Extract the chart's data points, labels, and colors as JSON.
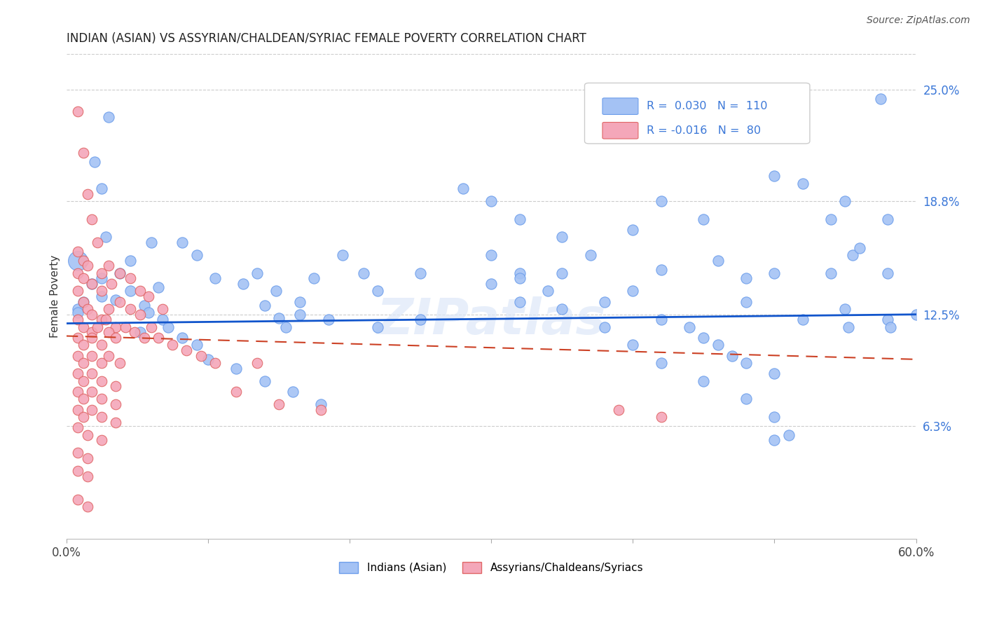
{
  "title": "INDIAN (ASIAN) VS ASSYRIAN/CHALDEAN/SYRIAC FEMALE POVERTY CORRELATION CHART",
  "source": "Source: ZipAtlas.com",
  "ylabel": "Female Poverty",
  "yticks": [
    0.063,
    0.125,
    0.188,
    0.25
  ],
  "ytick_labels": [
    "6.3%",
    "12.5%",
    "18.8%",
    "25.0%"
  ],
  "xlim": [
    0.0,
    0.6
  ],
  "ylim": [
    0.0,
    0.27
  ],
  "blue_R": "0.030",
  "blue_N": "110",
  "pink_R": "-0.016",
  "pink_N": "80",
  "blue_color": "#a4c2f4",
  "pink_color": "#f4a7b9",
  "blue_edge_color": "#6d9eeb",
  "pink_edge_color": "#e06666",
  "blue_line_color": "#1155cc",
  "pink_line_color": "#cc4125",
  "legend1_label": "Indians (Asian)",
  "legend2_label": "Assyrians/Chaldeans/Syriacs",
  "watermark": "ZIPatlas",
  "blue_trend": [
    0.0,
    0.6,
    0.12,
    0.125
  ],
  "pink_trend": [
    0.0,
    0.6,
    0.113,
    0.1
  ],
  "blue_points": [
    [
      0.03,
      0.235
    ],
    [
      0.02,
      0.21
    ],
    [
      0.025,
      0.195
    ],
    [
      0.028,
      0.168
    ],
    [
      0.06,
      0.165
    ],
    [
      0.045,
      0.155
    ],
    [
      0.038,
      0.148
    ],
    [
      0.065,
      0.14
    ],
    [
      0.045,
      0.138
    ],
    [
      0.025,
      0.135
    ],
    [
      0.035,
      0.133
    ],
    [
      0.055,
      0.13
    ],
    [
      0.008,
      0.128
    ],
    [
      0.058,
      0.126
    ],
    [
      0.068,
      0.122
    ],
    [
      0.072,
      0.118
    ],
    [
      0.052,
      0.115
    ],
    [
      0.082,
      0.112
    ],
    [
      0.092,
      0.108
    ],
    [
      0.025,
      0.145
    ],
    [
      0.018,
      0.142
    ],
    [
      0.012,
      0.132
    ],
    [
      0.008,
      0.126
    ],
    [
      0.14,
      0.13
    ],
    [
      0.15,
      0.123
    ],
    [
      0.155,
      0.118
    ],
    [
      0.165,
      0.125
    ],
    [
      0.185,
      0.122
    ],
    [
      0.28,
      0.195
    ],
    [
      0.3,
      0.188
    ],
    [
      0.32,
      0.178
    ],
    [
      0.35,
      0.168
    ],
    [
      0.37,
      0.158
    ],
    [
      0.4,
      0.172
    ],
    [
      0.42,
      0.188
    ],
    [
      0.45,
      0.178
    ],
    [
      0.5,
      0.202
    ],
    [
      0.52,
      0.198
    ],
    [
      0.55,
      0.188
    ],
    [
      0.555,
      0.158
    ],
    [
      0.58,
      0.178
    ],
    [
      0.575,
      0.245
    ],
    [
      0.35,
      0.128
    ],
    [
      0.38,
      0.132
    ],
    [
      0.4,
      0.138
    ],
    [
      0.42,
      0.122
    ],
    [
      0.44,
      0.118
    ],
    [
      0.45,
      0.112
    ],
    [
      0.46,
      0.108
    ],
    [
      0.47,
      0.102
    ],
    [
      0.48,
      0.098
    ],
    [
      0.5,
      0.092
    ],
    [
      0.3,
      0.158
    ],
    [
      0.32,
      0.148
    ],
    [
      0.32,
      0.132
    ],
    [
      0.35,
      0.148
    ],
    [
      0.38,
      0.118
    ],
    [
      0.4,
      0.108
    ],
    [
      0.42,
      0.098
    ],
    [
      0.45,
      0.088
    ],
    [
      0.48,
      0.078
    ],
    [
      0.5,
      0.068
    ],
    [
      0.5,
      0.055
    ],
    [
      0.51,
      0.058
    ],
    [
      0.52,
      0.122
    ],
    [
      0.55,
      0.128
    ],
    [
      0.552,
      0.118
    ],
    [
      0.58,
      0.122
    ],
    [
      0.582,
      0.118
    ],
    [
      0.54,
      0.148
    ],
    [
      0.5,
      0.148
    ],
    [
      0.48,
      0.132
    ],
    [
      0.22,
      0.138
    ],
    [
      0.25,
      0.148
    ],
    [
      0.58,
      0.148
    ],
    [
      0.56,
      0.162
    ],
    [
      0.54,
      0.178
    ],
    [
      0.6,
      0.125
    ],
    [
      0.42,
      0.15
    ],
    [
      0.46,
      0.155
    ],
    [
      0.48,
      0.145
    ],
    [
      0.3,
      0.142
    ],
    [
      0.32,
      0.145
    ],
    [
      0.34,
      0.138
    ],
    [
      0.25,
      0.122
    ],
    [
      0.22,
      0.118
    ],
    [
      0.1,
      0.1
    ],
    [
      0.12,
      0.095
    ],
    [
      0.14,
      0.088
    ],
    [
      0.16,
      0.082
    ],
    [
      0.18,
      0.075
    ],
    [
      0.082,
      0.165
    ],
    [
      0.092,
      0.158
    ],
    [
      0.105,
      0.145
    ],
    [
      0.125,
      0.142
    ],
    [
      0.135,
      0.148
    ],
    [
      0.148,
      0.138
    ],
    [
      0.165,
      0.132
    ],
    [
      0.175,
      0.145
    ],
    [
      0.195,
      0.158
    ],
    [
      0.21,
      0.148
    ]
  ],
  "pink_points": [
    [
      0.008,
      0.238
    ],
    [
      0.012,
      0.215
    ],
    [
      0.015,
      0.192
    ],
    [
      0.018,
      0.178
    ],
    [
      0.022,
      0.165
    ],
    [
      0.008,
      0.16
    ],
    [
      0.012,
      0.155
    ],
    [
      0.015,
      0.152
    ],
    [
      0.008,
      0.148
    ],
    [
      0.012,
      0.145
    ],
    [
      0.018,
      0.142
    ],
    [
      0.025,
      0.148
    ],
    [
      0.03,
      0.152
    ],
    [
      0.025,
      0.138
    ],
    [
      0.032,
      0.142
    ],
    [
      0.038,
      0.148
    ],
    [
      0.045,
      0.145
    ],
    [
      0.052,
      0.138
    ],
    [
      0.058,
      0.135
    ],
    [
      0.068,
      0.128
    ],
    [
      0.008,
      0.138
    ],
    [
      0.012,
      0.132
    ],
    [
      0.015,
      0.128
    ],
    [
      0.018,
      0.125
    ],
    [
      0.025,
      0.122
    ],
    [
      0.03,
      0.128
    ],
    [
      0.038,
      0.132
    ],
    [
      0.045,
      0.128
    ],
    [
      0.052,
      0.125
    ],
    [
      0.008,
      0.122
    ],
    [
      0.012,
      0.118
    ],
    [
      0.018,
      0.115
    ],
    [
      0.022,
      0.118
    ],
    [
      0.028,
      0.122
    ],
    [
      0.035,
      0.118
    ],
    [
      0.008,
      0.112
    ],
    [
      0.012,
      0.108
    ],
    [
      0.018,
      0.112
    ],
    [
      0.025,
      0.108
    ],
    [
      0.03,
      0.115
    ],
    [
      0.035,
      0.112
    ],
    [
      0.042,
      0.118
    ],
    [
      0.048,
      0.115
    ],
    [
      0.055,
      0.112
    ],
    [
      0.06,
      0.118
    ],
    [
      0.065,
      0.112
    ],
    [
      0.075,
      0.108
    ],
    [
      0.085,
      0.105
    ],
    [
      0.095,
      0.102
    ],
    [
      0.008,
      0.102
    ],
    [
      0.012,
      0.098
    ],
    [
      0.018,
      0.102
    ],
    [
      0.025,
      0.098
    ],
    [
      0.03,
      0.102
    ],
    [
      0.038,
      0.098
    ],
    [
      0.008,
      0.092
    ],
    [
      0.012,
      0.088
    ],
    [
      0.018,
      0.092
    ],
    [
      0.025,
      0.088
    ],
    [
      0.035,
      0.085
    ],
    [
      0.008,
      0.082
    ],
    [
      0.012,
      0.078
    ],
    [
      0.018,
      0.082
    ],
    [
      0.025,
      0.078
    ],
    [
      0.035,
      0.075
    ],
    [
      0.008,
      0.072
    ],
    [
      0.012,
      0.068
    ],
    [
      0.018,
      0.072
    ],
    [
      0.025,
      0.068
    ],
    [
      0.035,
      0.065
    ],
    [
      0.008,
      0.062
    ],
    [
      0.015,
      0.058
    ],
    [
      0.025,
      0.055
    ],
    [
      0.008,
      0.048
    ],
    [
      0.015,
      0.045
    ],
    [
      0.008,
      0.038
    ],
    [
      0.015,
      0.035
    ],
    [
      0.008,
      0.022
    ],
    [
      0.015,
      0.018
    ],
    [
      0.12,
      0.082
    ],
    [
      0.15,
      0.075
    ],
    [
      0.18,
      0.072
    ],
    [
      0.42,
      0.068
    ],
    [
      0.39,
      0.072
    ],
    [
      0.105,
      0.098
    ],
    [
      0.135,
      0.098
    ]
  ],
  "large_blue_point": [
    0.008,
    0.155
  ],
  "large_blue_size": 400
}
